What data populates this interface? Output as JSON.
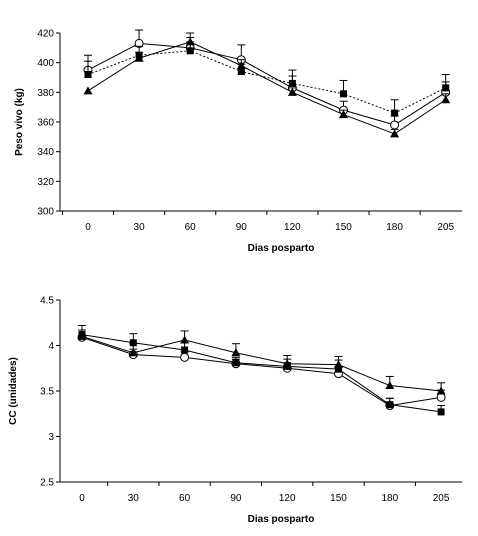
{
  "chart_data": [
    {
      "type": "line",
      "xlabel": "Dias posparto",
      "ylabel": "Peso vivo (kg)",
      "ylim": [
        300,
        420
      ],
      "yticks": [
        300,
        320,
        340,
        360,
        380,
        400,
        420
      ],
      "categories": [
        "0",
        "30",
        "60",
        "90",
        "120",
        "150",
        "180",
        "205"
      ],
      "grid": false,
      "series": [
        {
          "marker": "circle-open",
          "line": "solid",
          "values": [
            395,
            413,
            410,
            402,
            383,
            368,
            358,
            380
          ],
          "errors": [
            10,
            9,
            7,
            10,
            8,
            6,
            6,
            7
          ]
        },
        {
          "marker": "square-filled",
          "line": "dotted",
          "values": [
            392,
            405,
            408,
            394,
            386,
            379,
            366,
            383
          ],
          "errors": [
            9,
            6,
            6,
            5,
            9,
            9,
            9,
            9
          ]
        },
        {
          "marker": "triangle-filled",
          "line": "solid",
          "values": [
            381,
            403,
            414,
            398,
            380,
            365,
            352,
            375
          ],
          "errors": [
            0,
            4,
            6,
            4,
            3,
            3,
            3,
            4
          ]
        }
      ]
    },
    {
      "type": "line",
      "xlabel": "Dias posparto",
      "ylabel": "CC (unidades)",
      "ylim": [
        2.5,
        4.5
      ],
      "yticks": [
        "2.5",
        "3",
        "3.5",
        "4",
        "4.5"
      ],
      "categories": [
        "0",
        "30",
        "60",
        "90",
        "120",
        "150",
        "180",
        "205"
      ],
      "grid": false,
      "series": [
        {
          "marker": "circle-open",
          "line": "solid",
          "values": [
            4.09,
            3.9,
            3.87,
            3.8,
            3.75,
            3.69,
            3.34,
            3.43
          ],
          "errors": [
            0.08,
            0.06,
            0.06,
            0.05,
            0.06,
            0.08,
            0.08,
            0.08
          ]
        },
        {
          "marker": "square-filled",
          "line": "solid",
          "values": [
            4.12,
            4.03,
            3.95,
            3.81,
            3.77,
            3.74,
            3.35,
            3.27
          ],
          "errors": [
            0.1,
            0.1,
            0.08,
            0.06,
            0.08,
            0.1,
            0.07,
            0.07
          ]
        },
        {
          "marker": "triangle-filled",
          "line": "solid",
          "values": [
            4.1,
            3.92,
            4.06,
            3.92,
            3.8,
            3.79,
            3.56,
            3.5
          ],
          "errors": [
            0.12,
            0.1,
            0.1,
            0.1,
            0.09,
            0.09,
            0.1,
            0.09
          ]
        }
      ]
    }
  ]
}
